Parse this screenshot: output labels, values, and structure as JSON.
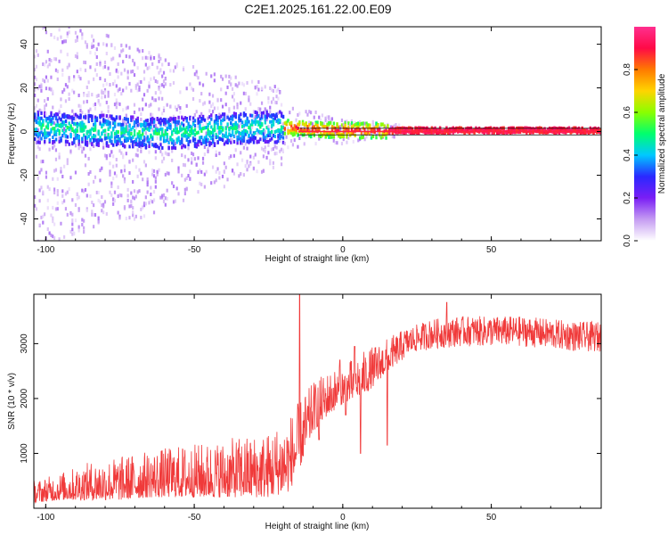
{
  "title": "C2E1.2025.161.22.00.E09",
  "colors": {
    "axis": "#000000",
    "snr_line": "#f03a3a",
    "background": "#ffffff"
  },
  "chart_data": [
    {
      "type": "heatmap",
      "name": "spectrogram",
      "xlabel": "Height of straight line (km)",
      "ylabel": "Frequency (Hz)",
      "xlim": [
        -104,
        87
      ],
      "ylim": [
        -50,
        48
      ],
      "xticks": [
        -100,
        -50,
        0,
        50
      ],
      "yticks": [
        -40,
        -20,
        0,
        20,
        40
      ],
      "colorbar": {
        "label": "Normalized spectral amplitude",
        "range": [
          0,
          1
        ],
        "ticks": [
          0.0,
          0.2,
          0.4,
          0.6,
          0.8
        ],
        "colormap": [
          "#ffffff",
          "#c59cf2",
          "#7a1ef5",
          "#2a28ff",
          "#00c8ff",
          "#00ff6e",
          "#8aff00",
          "#ffd400",
          "#ff7a00",
          "#ff0a46",
          "#ff2f8e"
        ]
      },
      "ridge": [
        {
          "x": -104,
          "f": 2
        },
        {
          "x": -90,
          "f": 1
        },
        {
          "x": -75,
          "f": 0
        },
        {
          "x": -60,
          "f": -1
        },
        {
          "x": -50,
          "f": 0
        },
        {
          "x": -40,
          "f": 1
        },
        {
          "x": -30,
          "f": 2
        },
        {
          "x": -20,
          "f": 2
        },
        {
          "x": -10,
          "f": 1
        },
        {
          "x": 0,
          "f": 0.5
        },
        {
          "x": 10,
          "f": 0.5
        },
        {
          "x": 50,
          "f": 0.5
        },
        {
          "x": 87,
          "f": 0.5
        }
      ],
      "reference_lines_hz": [
        -1.5,
        0,
        1.5
      ]
    },
    {
      "type": "line",
      "name": "snr",
      "xlabel": "Height of straight line (km)",
      "ylabel": "SNR (10 * v/v)",
      "xlim": [
        -104,
        87
      ],
      "ylim": [
        0,
        3900
      ],
      "xticks": [
        -100,
        -50,
        0,
        50
      ],
      "yticks": [
        1000,
        2000,
        3000
      ],
      "envelope": [
        {
          "x": -104,
          "lo": 100,
          "hi": 500
        },
        {
          "x": -95,
          "lo": 150,
          "hi": 650
        },
        {
          "x": -85,
          "lo": 150,
          "hi": 850
        },
        {
          "x": -75,
          "lo": 150,
          "hi": 950
        },
        {
          "x": -65,
          "lo": 200,
          "hi": 1050
        },
        {
          "x": -55,
          "lo": 200,
          "hi": 1150
        },
        {
          "x": -45,
          "lo": 200,
          "hi": 1200
        },
        {
          "x": -35,
          "lo": 200,
          "hi": 1300
        },
        {
          "x": -25,
          "lo": 200,
          "hi": 1400
        },
        {
          "x": -18,
          "lo": 300,
          "hi": 1700
        },
        {
          "x": -14,
          "lo": 800,
          "hi": 2000
        },
        {
          "x": -10,
          "lo": 1400,
          "hi": 2300
        },
        {
          "x": -5,
          "lo": 1700,
          "hi": 2500
        },
        {
          "x": 0,
          "lo": 1900,
          "hi": 2600
        },
        {
          "x": 5,
          "lo": 2000,
          "hi": 2800
        },
        {
          "x": 10,
          "lo": 2200,
          "hi": 2950
        },
        {
          "x": 15,
          "lo": 2500,
          "hi": 3100
        },
        {
          "x": 20,
          "lo": 2700,
          "hi": 3250
        },
        {
          "x": 25,
          "lo": 2850,
          "hi": 3350
        },
        {
          "x": 30,
          "lo": 2900,
          "hi": 3450
        },
        {
          "x": 40,
          "lo": 2950,
          "hi": 3500
        },
        {
          "x": 50,
          "lo": 2950,
          "hi": 3500
        },
        {
          "x": 60,
          "lo": 2950,
          "hi": 3500
        },
        {
          "x": 70,
          "lo": 2900,
          "hi": 3450
        },
        {
          "x": 80,
          "lo": 2850,
          "hi": 3400
        },
        {
          "x": 87,
          "lo": 2850,
          "hi": 3400
        }
      ],
      "peaks": [
        {
          "x": -14.5,
          "y": 3900
        },
        {
          "x": 4,
          "y": 2950
        },
        {
          "x": -1,
          "y": 2700
        },
        {
          "x": 16,
          "y": 2600
        },
        {
          "x": 35,
          "y": 3750
        }
      ],
      "dips": [
        {
          "x": 6,
          "y": 1000
        },
        {
          "x": 15,
          "y": 1150
        },
        {
          "x": 1,
          "y": 1700
        },
        {
          "x": -8,
          "y": 1250
        }
      ]
    }
  ]
}
